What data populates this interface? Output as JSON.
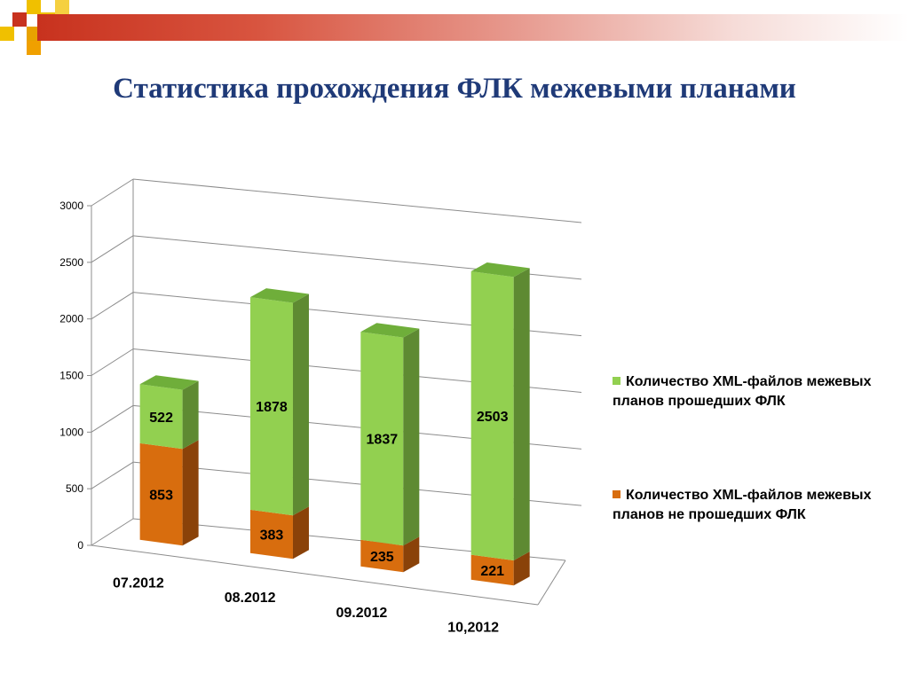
{
  "slide": {
    "title": "Статистика прохождения ФЛК межевыми планами"
  },
  "colors": {
    "passed": "#92d050",
    "failed": "#d86d0e",
    "title": "#1f3a78"
  },
  "chart_data": {
    "type": "bar",
    "stacked": true,
    "three_d": true,
    "categories": [
      "07.2012",
      "08.2012",
      "09.2012",
      "10,2012"
    ],
    "series": [
      {
        "name": "Количество XML-файлов межевых планов не прошедших ФЛК",
        "values": [
          853,
          383,
          235,
          221
        ]
      },
      {
        "name": "Количество XML-файлов межевых планов прошедших ФЛК",
        "values": [
          522,
          1878,
          1837,
          2503
        ]
      }
    ],
    "yticks": [
      "0",
      "500",
      "1000",
      "1500",
      "2000",
      "2500",
      "3000"
    ],
    "ylim": [
      0,
      3000
    ],
    "grid": true,
    "legend": "right"
  }
}
